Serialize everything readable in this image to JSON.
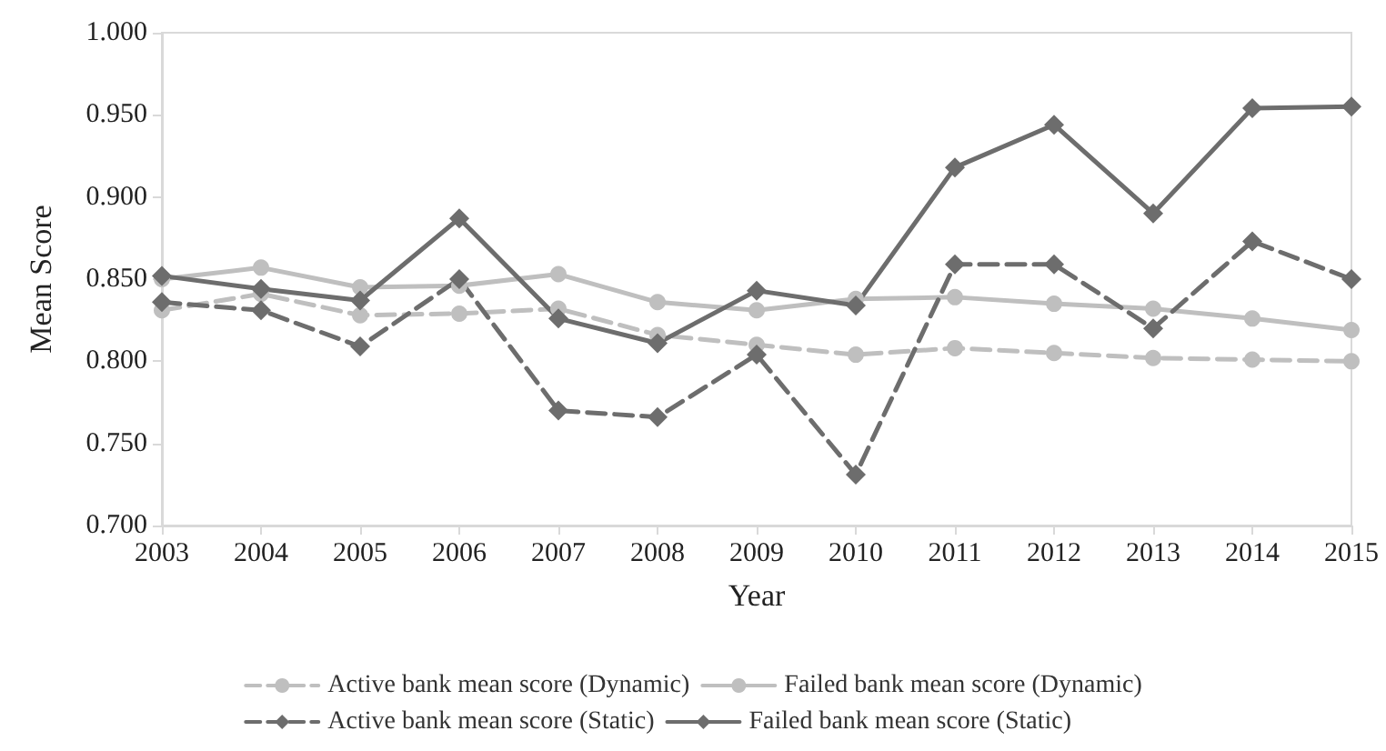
{
  "chart_data": {
    "type": "line",
    "xlabel": "Year",
    "ylabel": "Mean Score",
    "categories": [
      "2003",
      "2004",
      "2005",
      "2006",
      "2007",
      "2008",
      "2009",
      "2010",
      "2011",
      "2012",
      "2013",
      "2014",
      "2015"
    ],
    "series": [
      {
        "name": "Active bank mean score (Dynamic)",
        "color": "#bfbfbf",
        "line_style": "dashed",
        "marker": "circle",
        "values": [
          0.831,
          0.841,
          0.828,
          0.829,
          0.832,
          0.816,
          0.81,
          0.804,
          0.808,
          0.805,
          0.802,
          0.801,
          0.8
        ]
      },
      {
        "name": "Failed bank mean score (Dynamic)",
        "color": "#bfbfbf",
        "line_style": "solid",
        "marker": "circle",
        "values": [
          0.85,
          0.857,
          0.845,
          0.846,
          0.853,
          0.836,
          0.831,
          0.838,
          0.839,
          0.835,
          0.832,
          0.826,
          0.819
        ]
      },
      {
        "name": "Active bank mean score (Static)",
        "color": "#6d6d6d",
        "line_style": "dashed",
        "marker": "diamond",
        "values": [
          0.836,
          0.831,
          0.809,
          0.85,
          0.77,
          0.766,
          0.804,
          0.731,
          0.859,
          0.859,
          0.82,
          0.873,
          0.85
        ]
      },
      {
        "name": "Failed bank mean score (Static)",
        "color": "#6d6d6d",
        "line_style": "solid",
        "marker": "diamond",
        "values": [
          0.852,
          0.844,
          0.837,
          0.887,
          0.826,
          0.811,
          0.843,
          0.834,
          0.918,
          0.944,
          0.89,
          0.954,
          0.955
        ]
      }
    ],
    "ylim": [
      0.7,
      1.0
    ],
    "yticks": [
      {
        "value": 0.7,
        "label": "0.700"
      },
      {
        "value": 0.75,
        "label": "0.750"
      },
      {
        "value": 0.8,
        "label": "0.800"
      },
      {
        "value": 0.85,
        "label": "0.850"
      },
      {
        "value": 0.9,
        "label": "0.900"
      },
      {
        "value": 0.95,
        "label": "0.950"
      },
      {
        "value": 1.0,
        "label": "1.000"
      }
    ],
    "grid": false,
    "legend": "bottom"
  }
}
